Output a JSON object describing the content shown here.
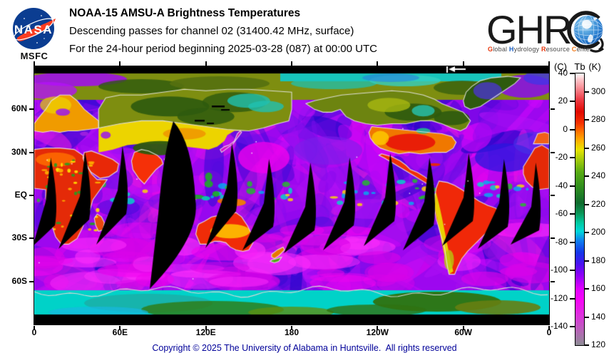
{
  "header": {
    "nasa": {
      "logo_text": "NASA",
      "center_label": "MSFC"
    },
    "title": "NOAA-15 AMSU-A Brightness Temperatures",
    "line2": "Descending passes for channel 02 (31400.42 MHz, surface)",
    "line3": "For the 24-hour period beginning 2025-03-28 (087) at 00:00 UTC",
    "ghrc": {
      "acronym": "GHRC",
      "acronym_text": "GHR",
      "tagline": [
        {
          "cap": "G",
          "rest": "lobal",
          "color": "#e8380d"
        },
        {
          "cap": "H",
          "rest": "ydrology",
          "color": "#1f63c4"
        },
        {
          "cap": "R",
          "rest": "esource",
          "color": "#e8380d"
        },
        {
          "cap": "C",
          "rest": "enter",
          "color": "#f07818"
        }
      ]
    }
  },
  "map": {
    "lon_ticks": [
      {
        "label": "0",
        "lon": 0
      },
      {
        "label": "60E",
        "lon": 60
      },
      {
        "label": "120E",
        "lon": 120
      },
      {
        "label": "180",
        "lon": 180
      },
      {
        "label": "120W",
        "lon": 240
      },
      {
        "label": "60W",
        "lon": 300
      },
      {
        "label": "0",
        "lon": 360
      }
    ],
    "lat_ticks": [
      {
        "label": "60N",
        "lat": 60
      },
      {
        "label": "30N",
        "lat": 30
      },
      {
        "label": "EQ",
        "lat": 0
      },
      {
        "label": "30S",
        "lat": -30
      },
      {
        "label": "60S",
        "lat": -60
      }
    ]
  },
  "colorbar": {
    "units": {
      "celsius": "(C)",
      "quantity": "Tb",
      "kelvin": "(K)"
    },
    "celsius_ticks": [
      40,
      20,
      0,
      -20,
      -40,
      -60,
      -80,
      -100,
      -120,
      -140
    ],
    "kelvin_ticks": [
      300,
      280,
      260,
      240,
      220,
      200,
      180,
      160,
      140,
      120
    ],
    "kelvin_range": [
      120,
      313.15
    ],
    "gradient": [
      {
        "k": 120,
        "color": "#8d8d95"
      },
      {
        "k": 130,
        "color": "#b565b5"
      },
      {
        "k": 140,
        "color": "#d936d9"
      },
      {
        "k": 152,
        "color": "#f704f7"
      },
      {
        "k": 160,
        "color": "#e000ff"
      },
      {
        "k": 170,
        "color": "#8b00f7"
      },
      {
        "k": 178,
        "color": "#4713f0"
      },
      {
        "k": 186,
        "color": "#1437e8"
      },
      {
        "k": 194,
        "color": "#0e7cf0"
      },
      {
        "k": 201,
        "color": "#00d8d8"
      },
      {
        "k": 207,
        "color": "#00c9a0"
      },
      {
        "k": 214,
        "color": "#0b9456"
      },
      {
        "k": 221,
        "color": "#0e6b2e"
      },
      {
        "k": 232,
        "color": "#2e8c1e"
      },
      {
        "k": 243,
        "color": "#57ab13"
      },
      {
        "k": 252,
        "color": "#a6cc0a"
      },
      {
        "k": 259,
        "color": "#e8e400"
      },
      {
        "k": 266,
        "color": "#ffaa00"
      },
      {
        "k": 272,
        "color": "#ff7000"
      },
      {
        "k": 278,
        "color": "#f53000"
      },
      {
        "k": 286,
        "color": "#e00800"
      },
      {
        "k": 295,
        "color": "#ef3f4a"
      },
      {
        "k": 303,
        "color": "#f99097"
      },
      {
        "k": 309,
        "color": "#fdc9cd"
      },
      {
        "k": 313.15,
        "color": "#ffffff"
      }
    ]
  },
  "chart_data": {
    "type": "heatmap",
    "title": "NOAA-15 AMSU-A Brightness Temperatures",
    "subtitle": "Descending passes for channel 02 (31400.42 MHz, surface)",
    "period": "24-hour period beginning 2025-03-28 (087) at 00:00 UTC",
    "projection": "equirectangular world map, longitude 0 eastward to 360, latitude 90N to 90S",
    "x_axis": {
      "label": "longitude",
      "ticks": [
        "0",
        "60E",
        "120E",
        "180",
        "120W",
        "60W",
        "0"
      ]
    },
    "y_axis": {
      "label": "latitude",
      "ticks": [
        "60N",
        "30N",
        "EQ",
        "30S",
        "60S"
      ]
    },
    "colorbar": {
      "quantity": "Tb",
      "units": [
        "C",
        "K"
      ],
      "min_k": 120,
      "max_k": 313.15,
      "celsius_ticks": [
        40,
        20,
        0,
        -20,
        -40,
        -60,
        -80,
        -100,
        -120,
        -140
      ],
      "kelvin_ticks": [
        300,
        280,
        260,
        240,
        220,
        200,
        180,
        160,
        140,
        120
      ]
    },
    "visible_features": [
      "warm land masses in red/orange/yellow (~260-300 K)",
      "cold oceans in purple/magenta/blue (~140-190 K)",
      "polar and high-terrain regions in green/cyan (~200-245 K)",
      "black slanted wedge gaps between descending orbital swaths",
      "large black data-gap wedge near 90E-115E south of Asia",
      "black unsampled bands at top and bottom of map"
    ]
  },
  "footer": {
    "copyright": "Copyright © 2025 The University of Alabama in Huntsville.  All rights reserved"
  }
}
